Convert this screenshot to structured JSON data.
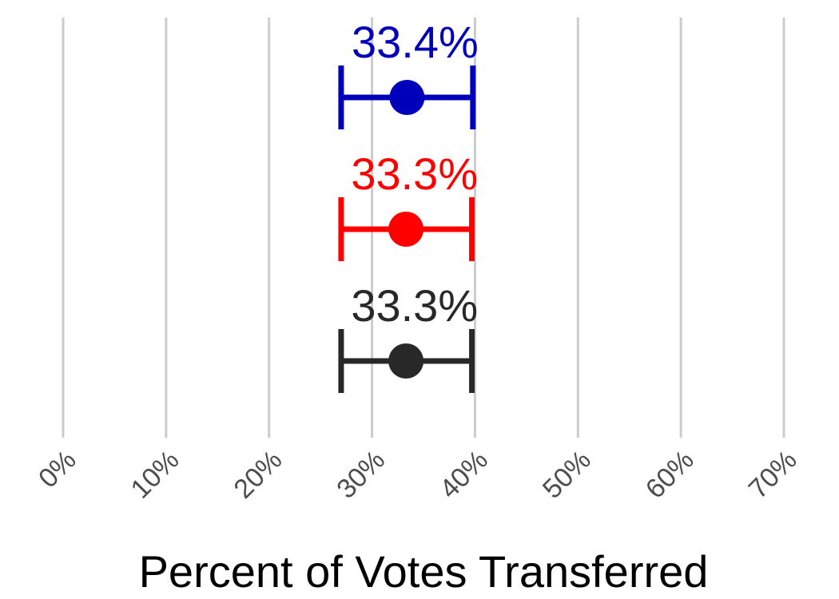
{
  "chart_data": {
    "type": "scatter",
    "xlabel": "Percent of Votes Transferred",
    "xlim": [
      0,
      70
    ],
    "x_ticks": [
      0,
      10,
      20,
      30,
      40,
      50,
      60,
      70
    ],
    "x_tick_labels": [
      "0%",
      "10%",
      "20%",
      "30%",
      "40%",
      "50%",
      "60%",
      "70%"
    ],
    "grid": "vertical",
    "series": [
      {
        "value": 33.4,
        "ci_low": 27.0,
        "ci_high": 39.8,
        "label": "33.4%",
        "color": "#0000bb"
      },
      {
        "value": 33.3,
        "ci_low": 27.0,
        "ci_high": 39.7,
        "label": "33.3%",
        "color": "#ff0000"
      },
      {
        "value": 33.3,
        "ci_low": 27.0,
        "ci_high": 39.7,
        "label": "33.3%",
        "color": "#282828"
      }
    ]
  }
}
